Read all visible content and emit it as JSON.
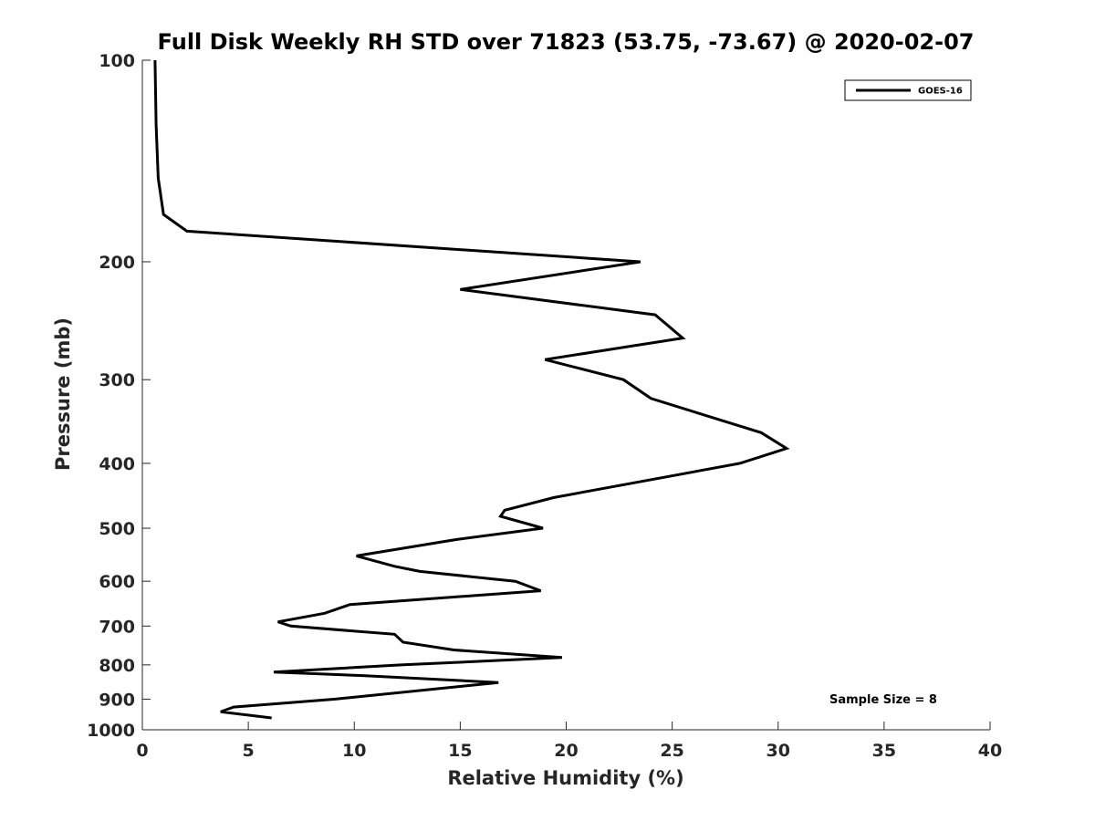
{
  "chart_data": {
    "type": "line",
    "title": "Full Disk Weekly RH STD over 71823 (53.75, -73.67) @ 2020-02-07",
    "xlabel": "Relative Humidity (%)",
    "ylabel": "Pressure (mb)",
    "xlim": [
      0,
      40
    ],
    "ylim": [
      100,
      1000
    ],
    "y_scale": "log",
    "y_reversed": true,
    "x_ticks": [
      "0",
      "5",
      "10",
      "15",
      "20",
      "25",
      "30",
      "35",
      "40"
    ],
    "y_ticks": [
      100,
      200,
      300,
      400,
      500,
      600,
      700,
      800,
      900,
      1000
    ],
    "y_tick_labels": [
      "100",
      "200",
      "300",
      "400",
      "500",
      "600",
      "700",
      "800",
      "900",
      "1000"
    ],
    "grid": false,
    "legend_position": "top-right",
    "annotation": "Sample Size = 8",
    "series": [
      {
        "name": "GOES-16",
        "color": "#000000",
        "points": [
          [
            0.6,
            100
          ],
          [
            0.65,
            125
          ],
          [
            0.75,
            150
          ],
          [
            1.0,
            170
          ],
          [
            2.1,
            180
          ],
          [
            23.5,
            200
          ],
          [
            15.0,
            220
          ],
          [
            24.2,
            240
          ],
          [
            25.5,
            260
          ],
          [
            19.0,
            280
          ],
          [
            22.7,
            300
          ],
          [
            24.0,
            320
          ],
          [
            29.2,
            360
          ],
          [
            30.4,
            380
          ],
          [
            28.2,
            400
          ],
          [
            19.4,
            450
          ],
          [
            17.1,
            470
          ],
          [
            16.9,
            480
          ],
          [
            18.9,
            500
          ],
          [
            14.8,
            520
          ],
          [
            10.1,
            550
          ],
          [
            11.9,
            570
          ],
          [
            13.1,
            580
          ],
          [
            17.6,
            600
          ],
          [
            18.8,
            620
          ],
          [
            9.8,
            650
          ],
          [
            8.6,
            670
          ],
          [
            6.4,
            690
          ],
          [
            7.0,
            700
          ],
          [
            11.9,
            720
          ],
          [
            12.3,
            740
          ],
          [
            14.7,
            760
          ],
          [
            19.8,
            780
          ],
          [
            12.2,
            800
          ],
          [
            6.2,
            820
          ],
          [
            10.4,
            830
          ],
          [
            16.8,
            850
          ],
          [
            9.1,
            900
          ],
          [
            4.3,
            925
          ],
          [
            3.7,
            940
          ],
          [
            6.1,
            960
          ]
        ]
      }
    ]
  }
}
